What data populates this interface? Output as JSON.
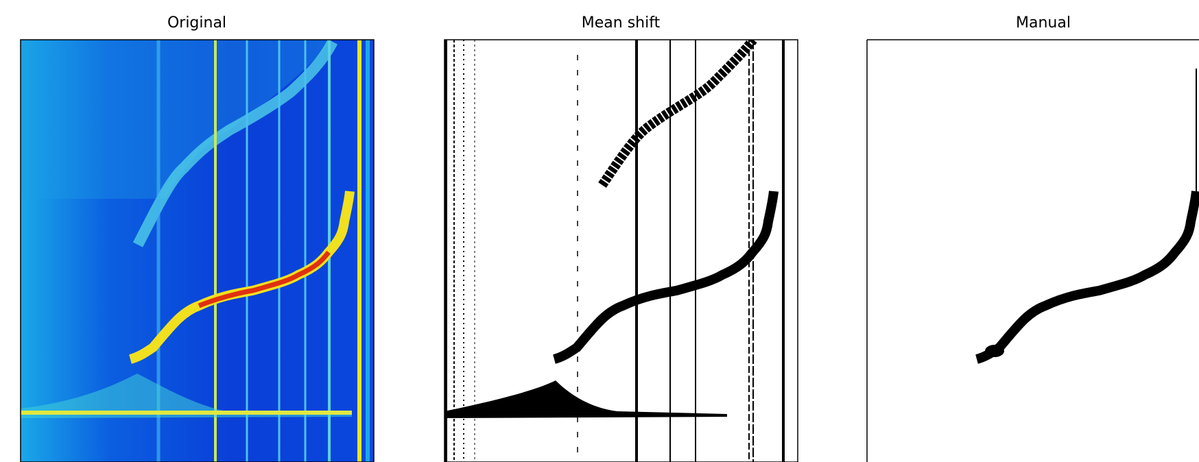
{
  "panels": [
    {
      "title": "Original"
    },
    {
      "title": "Mean shift"
    },
    {
      "title": "Manual"
    }
  ]
}
